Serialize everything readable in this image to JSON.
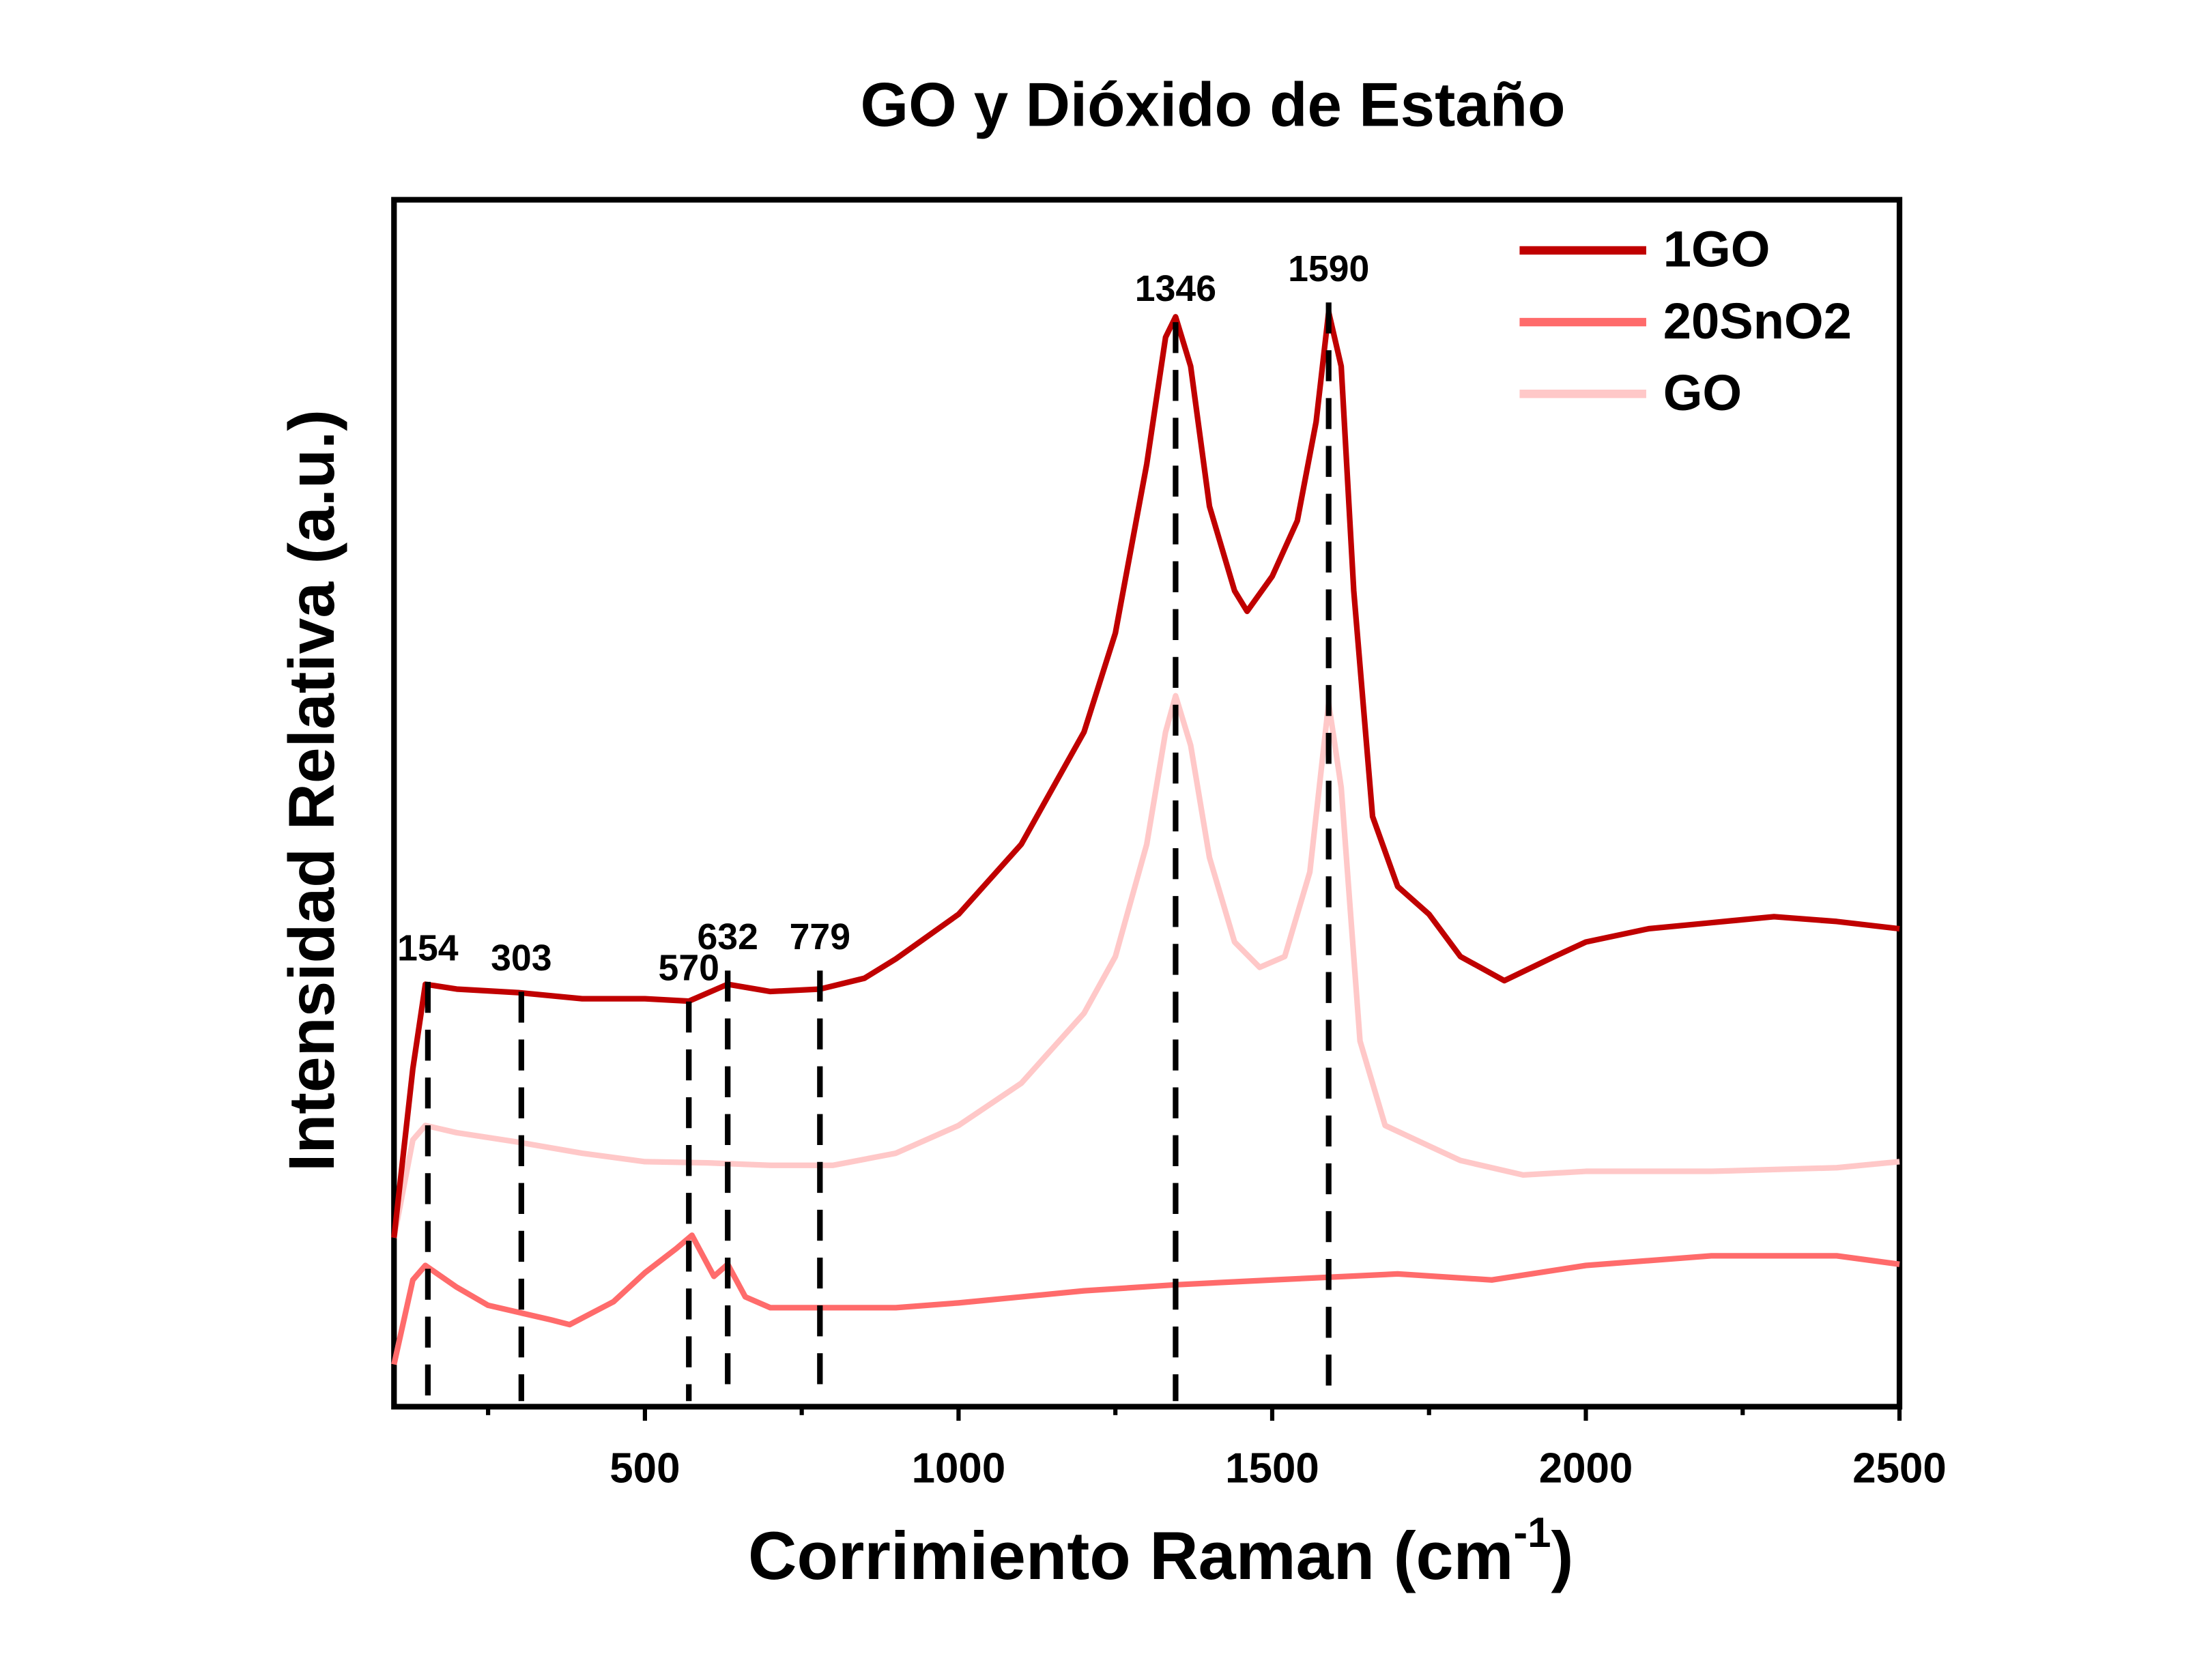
{
  "chart_data": {
    "type": "line",
    "title": "GO y Dióxido de Estaño",
    "x_label": {
      "text": "Corrimiento Raman (cm",
      "superscript": "-1",
      "suffix": ")"
    },
    "y_label": "Intensidad Relativa (a.u.)",
    "xlim": [
      100,
      2500
    ],
    "xticks": [
      500,
      1000,
      1500,
      2000,
      2500
    ],
    "xminorticks": [
      250,
      750,
      1250,
      1750,
      2250
    ],
    "ylim": [
      0,
      100
    ],
    "legend": "upper right",
    "peaks": [
      154,
      303,
      570,
      632,
      779,
      1346,
      1590
    ],
    "series": [
      {
        "name": "1GO",
        "color": "#c00000",
        "x": [
          100,
          130,
          150,
          200,
          300,
          400,
          500,
          570,
          632,
          700,
          779,
          850,
          900,
          1000,
          1100,
          1200,
          1250,
          1300,
          1330,
          1346,
          1370,
          1400,
          1440,
          1460,
          1500,
          1540,
          1570,
          1590,
          1610,
          1630,
          1660,
          1700,
          1750,
          1800,
          1870,
          1950,
          2000,
          2100,
          2200,
          2300,
          2400,
          2500
        ],
        "values": [
          14.0,
          28.0,
          35.0,
          34.6,
          34.3,
          33.8,
          33.8,
          33.6,
          35.0,
          34.4,
          34.6,
          35.5,
          37.1,
          40.8,
          46.6,
          55.9,
          64.1,
          78.1,
          88.6,
          90.3,
          86.2,
          74.6,
          67.6,
          65.9,
          68.8,
          73.4,
          81.6,
          90.7,
          86.2,
          67.6,
          48.9,
          43.1,
          40.8,
          37.3,
          35.3,
          37.3,
          38.5,
          39.6,
          40.1,
          40.6,
          40.2,
          39.6
        ]
      },
      {
        "name": "20SnO2",
        "color": "#ff6b6b",
        "x": [
          100,
          130,
          150,
          200,
          250,
          300,
          350,
          380,
          450,
          500,
          550,
          575,
          610,
          632,
          660,
          700,
          779,
          900,
          1000,
          1200,
          1346,
          1500,
          1700,
          1850,
          2000,
          2200,
          2400,
          2500
        ],
        "values": [
          3.5,
          10.5,
          11.7,
          9.9,
          8.4,
          7.8,
          7.2,
          6.8,
          8.7,
          11.1,
          13.1,
          14.2,
          10.8,
          11.8,
          9.1,
          8.2,
          8.2,
          8.2,
          8.6,
          9.6,
          10.1,
          10.5,
          11.0,
          10.5,
          11.7,
          12.5,
          12.5,
          11.8
        ]
      },
      {
        "name": "GO",
        "color": "#ffc8c8",
        "x": [
          100,
          130,
          150,
          200,
          300,
          400,
          500,
          600,
          700,
          800,
          900,
          1000,
          1100,
          1200,
          1250,
          1300,
          1330,
          1346,
          1370,
          1400,
          1440,
          1480,
          1520,
          1560,
          1590,
          1610,
          1640,
          1680,
          1750,
          1800,
          1900,
          2000,
          2200,
          2400,
          2500
        ],
        "values": [
          14.0,
          22.1,
          23.3,
          22.7,
          21.9,
          21.0,
          20.3,
          20.2,
          20.0,
          20.0,
          21.0,
          23.3,
          26.8,
          32.6,
          37.3,
          46.6,
          55.9,
          58.9,
          54.8,
          45.5,
          38.5,
          36.4,
          37.3,
          44.3,
          58.3,
          51.3,
          30.3,
          23.3,
          21.6,
          20.4,
          19.2,
          19.5,
          19.5,
          19.8,
          20.3
        ]
      }
    ]
  }
}
